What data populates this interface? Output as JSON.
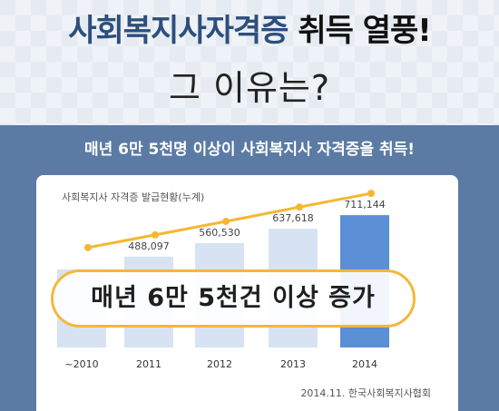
{
  "header": {
    "title_part1": "사회복지사자격증",
    "title_part2": "취득 열풍!",
    "subtitle": "그 이유는?"
  },
  "band": {
    "title": "매년 6만 5천명 이상이 사회복지사 자격증을 취득!"
  },
  "callout": {
    "text": "매년 6만 5천건 이상 증가"
  },
  "colors": {
    "bar": "#d7e3f2",
    "bar_highlight": "#5b8fd6",
    "line": "#f5b731",
    "accent_navy": "#2c4f7c",
    "band": "#5b7ba4"
  },
  "chart_data": {
    "type": "bar",
    "title": "사회복지사 자격증 발급현황(누계)",
    "categories": [
      "~2010",
      "2011",
      "2012",
      "2013",
      "2014"
    ],
    "series": [
      {
        "values": [
          420000,
          488097,
          560530,
          637618,
          711144
        ],
        "labels": [
          "",
          "488,097",
          "560,530",
          "637,618",
          "711,144"
        ]
      }
    ],
    "trend_line": true,
    "ylim": [
      0,
      780000
    ],
    "highlight_index": 4,
    "source": "2014.11. 한국사회복지사협회"
  }
}
